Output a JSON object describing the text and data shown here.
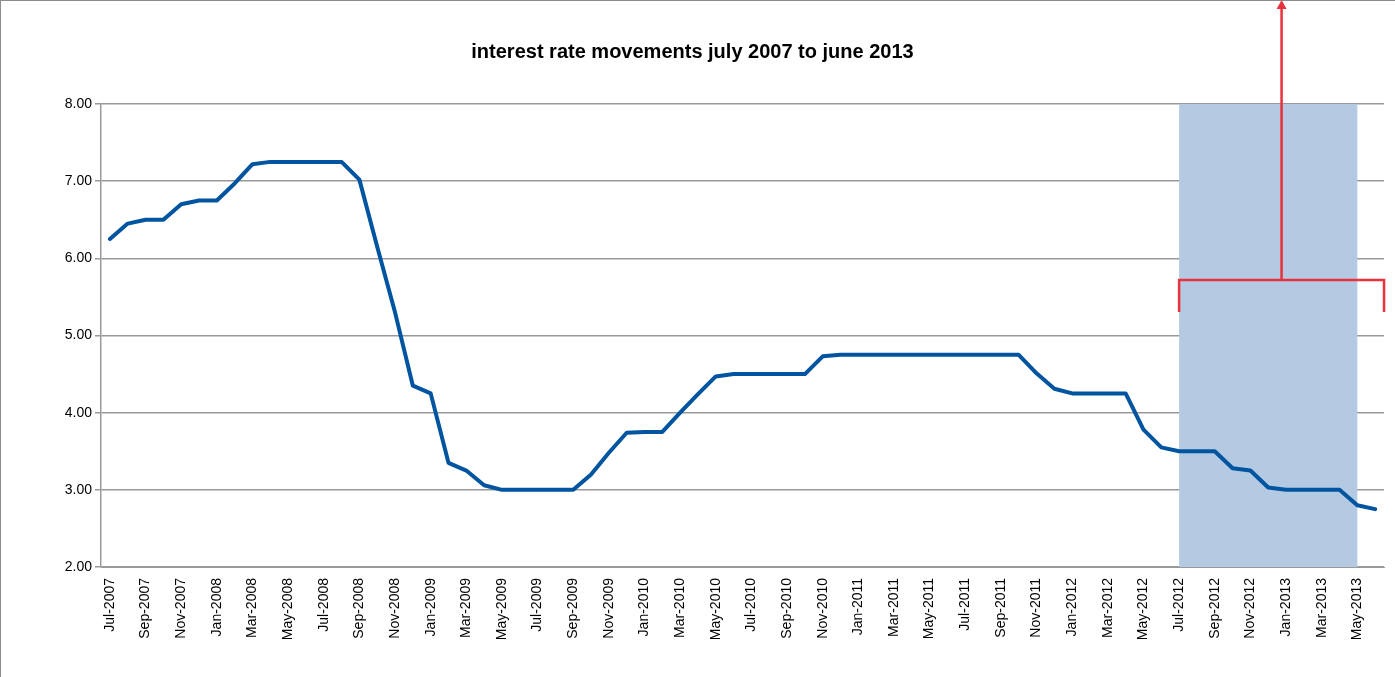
{
  "chart_data": {
    "type": "line",
    "title": "interest rate movements july 2007 to june 2013",
    "categories": [
      "Jul-2007",
      null,
      "Sep-2007",
      null,
      "Nov-2007",
      null,
      "Jan-2008",
      null,
      "Mar-2008",
      null,
      "May-2008",
      null,
      "Jul-2008",
      null,
      "Sep-2008",
      null,
      "Nov-2008",
      null,
      "Jan-2009",
      null,
      "Mar-2009",
      null,
      "May-2009",
      null,
      "Jul-2009",
      null,
      "Sep-2009",
      null,
      "Nov-2009",
      null,
      "Jan-2010",
      null,
      "Mar-2010",
      null,
      "May-2010",
      null,
      "Jul-2010",
      null,
      "Sep-2010",
      null,
      "Nov-2010",
      null,
      "Jan-2011",
      null,
      "Mar-2011",
      null,
      "May-2011",
      null,
      "Jul-2011",
      null,
      "Sep-2011",
      null,
      "Nov-2011",
      null,
      "Jan-2012",
      null,
      "Mar-2012",
      null,
      "May-2012",
      null,
      "Jul-2012",
      null,
      "Sep-2012",
      null,
      "Nov-2012",
      null,
      "Jan-2013",
      null,
      "Mar-2013",
      null,
      "May-2013",
      null
    ],
    "series": [
      {
        "color": "#0054a0",
        "values": [
          6.25,
          6.45,
          6.5,
          6.5,
          6.7,
          6.75,
          6.75,
          6.97,
          7.22,
          7.25,
          7.25,
          7.25,
          7.25,
          7.25,
          7.02,
          6.15,
          5.3,
          4.35,
          4.25,
          3.35,
          3.25,
          3.06,
          3.0,
          3.0,
          3.0,
          3.0,
          3.0,
          3.2,
          3.48,
          3.74,
          3.75,
          3.75,
          4.0,
          4.24,
          4.47,
          4.5,
          4.5,
          4.5,
          4.5,
          4.5,
          4.73,
          4.75,
          4.75,
          4.75,
          4.75,
          4.75,
          4.75,
          4.75,
          4.75,
          4.75,
          4.75,
          4.75,
          4.51,
          4.31,
          4.25,
          4.25,
          4.25,
          4.25,
          3.78,
          3.55,
          3.5,
          3.5,
          3.5,
          3.28,
          3.25,
          3.03,
          3.0,
          3.0,
          3.0,
          3.0,
          2.8,
          2.75
        ]
      }
    ],
    "ylim": [
      2,
      8
    ],
    "yticks": [
      {
        "value": 2,
        "label": "2.00"
      },
      {
        "value": 3,
        "label": "3.00"
      },
      {
        "value": 4,
        "label": "4.00"
      },
      {
        "value": 5,
        "label": "5.00"
      },
      {
        "value": 6,
        "label": "6.00"
      },
      {
        "value": 7,
        "label": "7.00"
      },
      {
        "value": 8,
        "label": "8.00"
      }
    ],
    "grid": "y",
    "legend": false,
    "marker": "none",
    "line_style": "solid",
    "bands": [
      {
        "axis": "x",
        "from": "Jul-2012",
        "to": "May-2013",
        "color": "#b3cae2"
      }
    ]
  }
}
